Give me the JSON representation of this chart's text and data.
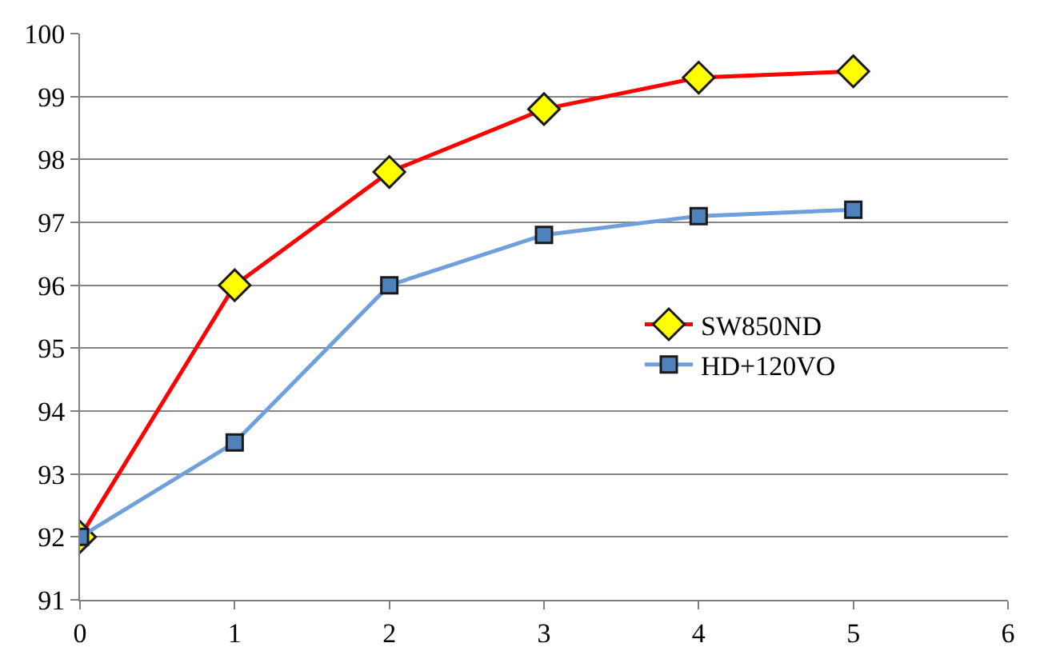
{
  "chart_data": {
    "type": "line",
    "x": [
      0,
      1,
      2,
      3,
      4,
      5
    ],
    "series": [
      {
        "name": "SW850ND",
        "color": "#ff0000",
        "colors": [
          "#ffff00",
          "#ffff00",
          "#ffff00",
          "#ffff00",
          "#ffff00",
          "#ffff00"
        ],
        "marker": "diamond",
        "values": [
          92,
          96,
          97.8,
          98.8,
          99.3,
          99.4
        ]
      },
      {
        "name": "HD+120VO",
        "color": "#6fa0dc",
        "colors": [
          "#4f81bd",
          "#4f81bd",
          "#4f81bd",
          "#4f81bd",
          "#4f81bd",
          "#4f81bd"
        ],
        "marker": "square",
        "values": [
          92,
          93.5,
          96,
          96.8,
          97.1,
          97.2
        ]
      }
    ],
    "xlim": [
      0,
      6
    ],
    "xticks": [
      0,
      1,
      2,
      3,
      4,
      5,
      6
    ],
    "ylim": [
      91,
      100
    ],
    "yticks": [
      91,
      92,
      93,
      94,
      95,
      96,
      97,
      98,
      99,
      100
    ],
    "grid": "y",
    "legend": "right"
  }
}
